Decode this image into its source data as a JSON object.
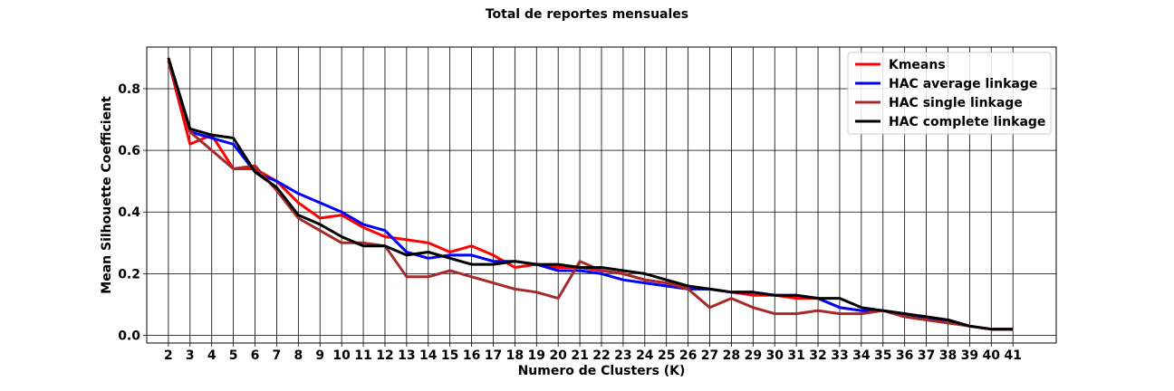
{
  "chart_data": {
    "type": "line",
    "title": "Total de reportes mensuales",
    "xlabel": "Numero de Clusters (K)",
    "ylabel": "Mean Silhouette Coefficient",
    "x": [
      2,
      3,
      4,
      5,
      6,
      7,
      8,
      9,
      10,
      11,
      12,
      13,
      14,
      15,
      16,
      17,
      18,
      19,
      20,
      21,
      22,
      23,
      24,
      25,
      26,
      27,
      28,
      29,
      30,
      31,
      32,
      33,
      34,
      35,
      36,
      37,
      38,
      39,
      40,
      41
    ],
    "xlim": [
      1,
      43
    ],
    "ylim": [
      -0.025,
      0.935
    ],
    "yticks": [
      0.0,
      0.2,
      0.4,
      0.6,
      0.8
    ],
    "ytick_labels": [
      "0.0",
      "0.2",
      "0.4",
      "0.6",
      "0.8"
    ],
    "grid": true,
    "legend_position": "top-right",
    "series": [
      {
        "name": "Kmeans",
        "color": "#ff0000",
        "values": [
          0.89,
          0.62,
          0.65,
          0.54,
          0.54,
          0.5,
          0.43,
          0.38,
          0.39,
          0.35,
          0.32,
          0.31,
          0.3,
          0.27,
          0.29,
          0.26,
          0.22,
          0.23,
          0.22,
          0.22,
          0.21,
          0.2,
          0.18,
          0.17,
          0.16,
          0.15,
          0.14,
          0.13,
          0.13,
          0.12,
          0.12,
          0.09,
          0.08,
          0.08,
          0.07,
          0.06,
          0.05,
          0.03,
          0.02,
          0.02
        ]
      },
      {
        "name": "HAC average linkage",
        "color": "#0000ff",
        "values": [
          0.89,
          0.66,
          0.64,
          0.62,
          0.53,
          0.5,
          0.46,
          0.43,
          0.4,
          0.36,
          0.34,
          0.27,
          0.25,
          0.26,
          0.26,
          0.24,
          0.24,
          0.23,
          0.21,
          0.21,
          0.2,
          0.18,
          0.17,
          0.16,
          0.15,
          0.15,
          0.14,
          0.14,
          0.13,
          0.13,
          0.12,
          0.09,
          0.08,
          0.08,
          0.07,
          0.05,
          0.05,
          0.03,
          0.02,
          0.02
        ]
      },
      {
        "name": "HAC single linkage",
        "color": "#a52a2a",
        "values": [
          0.89,
          0.66,
          0.6,
          0.54,
          0.55,
          0.47,
          0.38,
          0.34,
          0.3,
          0.3,
          0.29,
          0.19,
          0.19,
          0.21,
          0.19,
          0.17,
          0.15,
          0.14,
          0.12,
          0.24,
          0.21,
          0.2,
          0.18,
          0.17,
          0.15,
          0.09,
          0.12,
          0.09,
          0.07,
          0.07,
          0.08,
          0.07,
          0.07,
          0.08,
          0.06,
          0.05,
          0.04,
          0.03,
          0.02,
          0.02
        ]
      },
      {
        "name": "HAC complete linkage",
        "color": "#000000",
        "values": [
          0.9,
          0.67,
          0.65,
          0.64,
          0.53,
          0.48,
          0.39,
          0.36,
          0.32,
          0.29,
          0.29,
          0.26,
          0.27,
          0.25,
          0.23,
          0.23,
          0.24,
          0.23,
          0.23,
          0.22,
          0.22,
          0.21,
          0.2,
          0.18,
          0.16,
          0.15,
          0.14,
          0.14,
          0.13,
          0.13,
          0.12,
          0.12,
          0.09,
          0.08,
          0.07,
          0.06,
          0.05,
          0.03,
          0.02,
          0.02
        ]
      }
    ]
  }
}
